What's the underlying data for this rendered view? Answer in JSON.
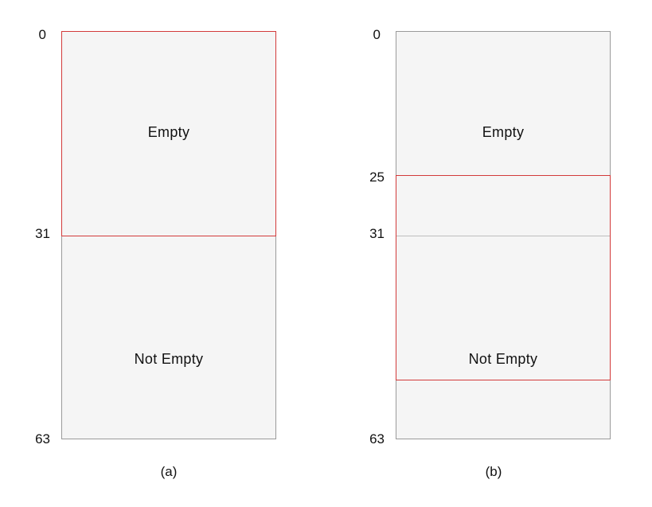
{
  "panel_a": {
    "caption": "(a)",
    "ticks": {
      "top": "0",
      "mid": "31",
      "bottom": "63"
    },
    "regions": {
      "upper": "Empty",
      "lower": "Not Empty"
    }
  },
  "panel_b": {
    "caption": "(b)",
    "ticks": {
      "top": "0",
      "highlight_start": "25",
      "mid": "31",
      "bottom": "63"
    },
    "regions": {
      "upper": "Empty",
      "lower": "Not Empty"
    }
  },
  "colors": {
    "highlight": "#d23a3a",
    "box_fill": "#f5f5f5",
    "box_border": "#9a9a9a"
  }
}
